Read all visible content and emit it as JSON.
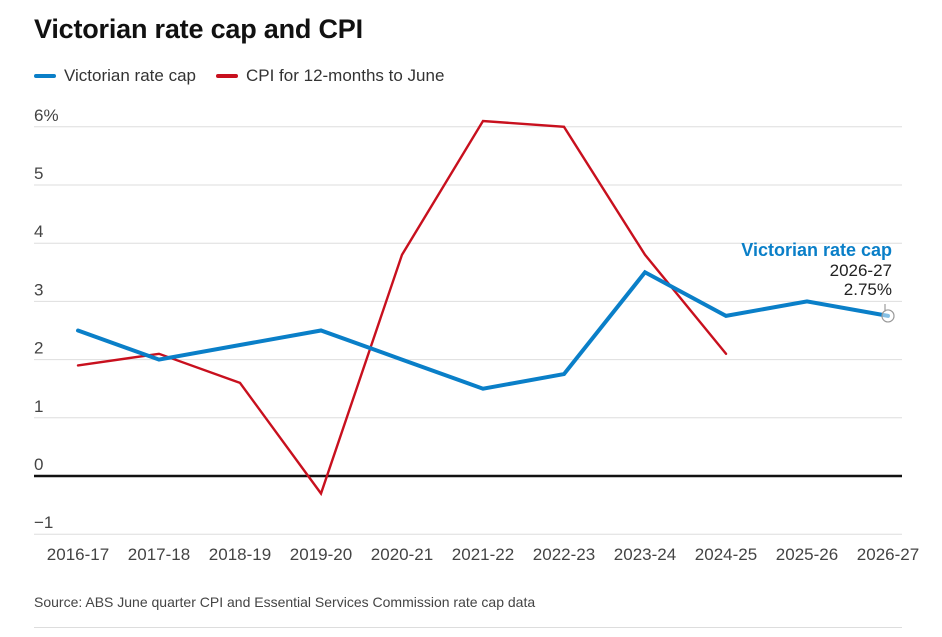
{
  "title": "Victorian rate cap and CPI",
  "legend": [
    {
      "label": "Victorian rate cap",
      "color": "#0a7fc8"
    },
    {
      "label": "CPI for 12-months to June",
      "color": "#c8101e"
    }
  ],
  "source": "Source: ABS June quarter CPI and Essential Services Commission rate cap data",
  "chart_data": {
    "type": "line",
    "title": "Victorian rate cap and CPI",
    "categories": [
      "2016-17",
      "2017-18",
      "2018-19",
      "2019-20",
      "2020-21",
      "2021-22",
      "2022-23",
      "2023-24",
      "2024-25",
      "2025-26",
      "2026-27"
    ],
    "series": [
      {
        "name": "Victorian rate cap",
        "color": "#0a7fc8",
        "values": [
          2.5,
          2.0,
          2.25,
          2.5,
          2.0,
          1.5,
          1.75,
          3.5,
          2.75,
          3.0,
          2.75
        ]
      },
      {
        "name": "CPI for 12-months to June",
        "color": "#c8101e",
        "values": [
          1.9,
          2.1,
          1.6,
          -0.3,
          3.8,
          6.1,
          6.0,
          3.8,
          2.1,
          null,
          null
        ]
      }
    ],
    "y_ticks": [
      "6%",
      "5",
      "4",
      "3",
      "2",
      "1",
      "0",
      "−1"
    ],
    "y_tick_values": [
      6,
      5,
      4,
      3,
      2,
      1,
      0,
      -1
    ],
    "ylim": [
      -1,
      6
    ],
    "xlabel": "",
    "ylabel": "",
    "grid": true,
    "legend_position": "top-left",
    "annotation": {
      "series": "Victorian rate cap",
      "period": "2026-27",
      "value": "2.75%"
    }
  }
}
